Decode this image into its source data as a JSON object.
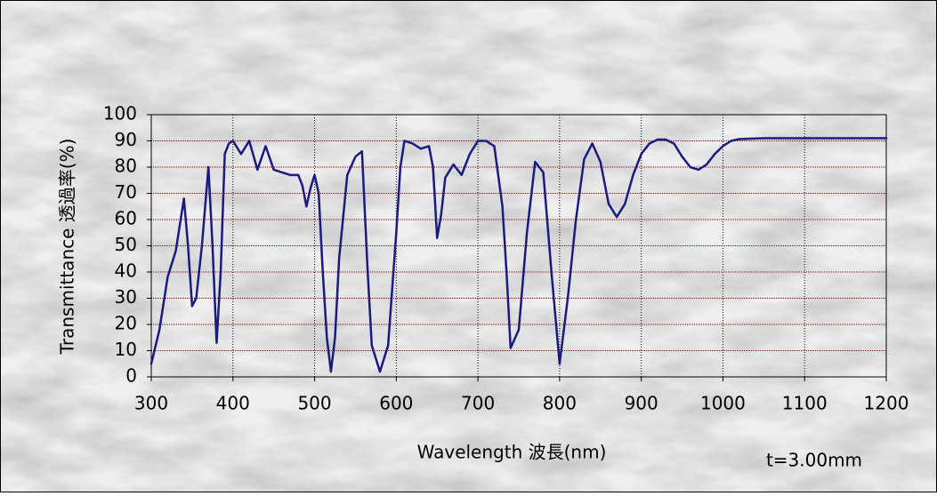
{
  "chart_data": {
    "type": "line",
    "xlabel": "Wavelength 波長(nm)",
    "ylabel": "Transmittance 透過率(%)",
    "annotation": "t=3.00mm",
    "x": [
      300,
      310,
      320,
      330,
      340,
      345,
      350,
      355,
      362,
      370,
      375,
      380,
      385,
      390,
      395,
      400,
      410,
      420,
      430,
      440,
      450,
      460,
      470,
      480,
      485,
      490,
      495,
      500,
      505,
      510,
      515,
      520,
      525,
      530,
      540,
      550,
      558,
      565,
      570,
      580,
      590,
      600,
      605,
      610,
      620,
      630,
      640,
      645,
      650,
      655,
      660,
      670,
      680,
      690,
      700,
      710,
      720,
      730,
      735,
      740,
      750,
      760,
      770,
      780,
      790,
      800,
      810,
      820,
      830,
      840,
      850,
      860,
      870,
      880,
      890,
      900,
      910,
      920,
      930,
      940,
      950,
      960,
      970,
      980,
      990,
      1000,
      1010,
      1020,
      1050,
      1100,
      1150,
      1200
    ],
    "values": [
      5,
      18,
      38,
      48,
      68,
      50,
      27,
      30,
      50,
      80,
      50,
      13,
      40,
      85,
      89,
      90,
      85,
      90,
      79,
      88,
      79,
      78,
      77,
      77,
      73,
      65,
      72,
      77,
      70,
      40,
      15,
      2,
      15,
      45,
      77,
      84,
      86,
      40,
      12,
      2,
      12,
      55,
      80,
      90,
      89,
      87,
      88,
      80,
      53,
      62,
      76,
      81,
      77,
      85,
      90,
      90,
      88,
      65,
      40,
      11,
      18,
      55,
      82,
      78,
      40,
      5,
      30,
      60,
      83,
      89,
      82,
      66,
      61,
      66,
      77,
      85,
      89,
      90.5,
      90.5,
      89,
      84,
      80,
      79,
      81,
      85,
      88,
      90,
      90.7,
      91,
      91,
      91,
      91
    ],
    "color": "#1b1b7e",
    "xlim": [
      300,
      1200
    ],
    "xticks": [
      300,
      400,
      500,
      600,
      700,
      800,
      900,
      1000,
      1100,
      1200
    ],
    "ylim": [
      0,
      100
    ],
    "yticks": [
      0,
      10,
      20,
      30,
      40,
      50,
      60,
      70,
      80,
      90,
      100
    ],
    "x_grid_color": "#000000",
    "y_grid_color": "#8b0000",
    "grid": true
  }
}
